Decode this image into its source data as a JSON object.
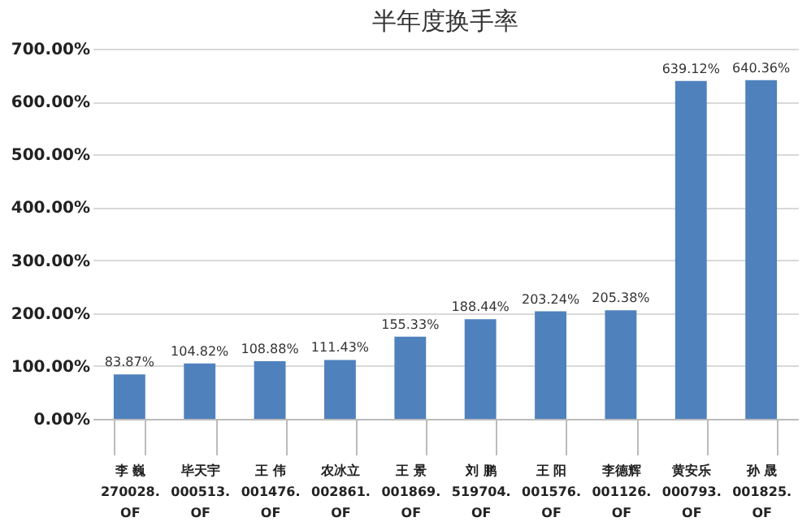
{
  "chart_data": {
    "type": "bar",
    "title": "半年度换手率",
    "categories": [
      "李 巍\n270028.OF",
      "毕天宇\n000513.OF",
      "王 伟\n001476.OF",
      "农冰立\n002861.OF",
      "王 景\n001869.OF",
      "刘 鹏\n519704.OF",
      "王 阳\n001576.OF",
      "李德辉\n001126.OF",
      "黄安乐\n000793.OF",
      "孙 晟\n001825.OF"
    ],
    "values": [
      83.87,
      104.82,
      108.88,
      111.43,
      155.33,
      188.44,
      203.24,
      205.38,
      639.12,
      640.36
    ],
    "value_labels": [
      "83.87%",
      "104.82%",
      "108.88%",
      "111.43%",
      "155.33%",
      "188.44%",
      "203.24%",
      "205.38%",
      "639.12%",
      "640.36%"
    ],
    "color": "#4f81bd",
    "ylim": [
      0,
      700
    ],
    "yticks": [
      {
        "value": 0,
        "label": "0.00%"
      },
      {
        "value": 100,
        "label": "100.00%"
      },
      {
        "value": 200,
        "label": "200.00%"
      },
      {
        "value": 300,
        "label": "300.00%"
      },
      {
        "value": 400,
        "label": "400.00%"
      },
      {
        "value": 500,
        "label": "500.00%"
      },
      {
        "value": 600,
        "label": "600.00%"
      },
      {
        "value": 700,
        "label": "700.00%"
      }
    ],
    "grid": "y"
  }
}
